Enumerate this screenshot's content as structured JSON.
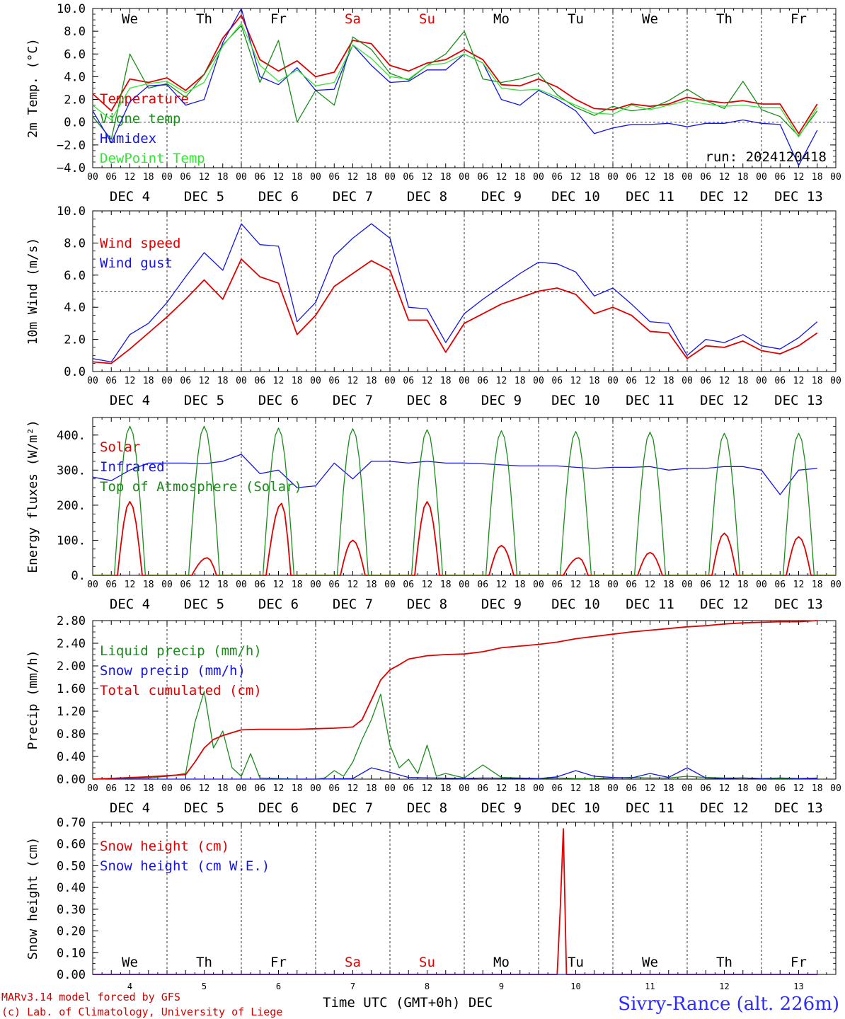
{
  "meta": {
    "run_label": "run: 2024120418",
    "model_credit": "MARv3.14 model forced by GFS",
    "lab_credit": "(c) Lab. of Climatology, University of Liege",
    "x_axis_title": "Time UTC (GMT+0h) DEC",
    "station": "Sivry-Rance (alt. 226m)"
  },
  "colors": {
    "red": "#e00000",
    "green": "#1a8c1a",
    "blue": "#1414e6",
    "lightgreen": "#33e633",
    "weekend": "#e00000",
    "station": "#2b2bff"
  },
  "days": {
    "weekday_labels": [
      "We",
      "Th",
      "Fr",
      "Sa",
      "Su",
      "Mo",
      "Tu",
      "We",
      "Th",
      "Fr"
    ],
    "weekend_flags": [
      false,
      false,
      false,
      true,
      true,
      false,
      false,
      false,
      false,
      false
    ],
    "date_labels": [
      "DEC  4",
      "DEC  5",
      "DEC  6",
      "DEC  7",
      "DEC  8",
      "DEC  9",
      "DEC 10",
      "DEC 11",
      "DEC 12",
      "DEC 13"
    ],
    "day_numbers": [
      "4",
      "5",
      "6",
      "7",
      "8",
      "9",
      "10",
      "11",
      "12",
      "13"
    ],
    "hour_labels": [
      "00",
      "06",
      "12",
      "18"
    ],
    "end_hour_label": "00"
  },
  "chart_data": [
    {
      "type": "line",
      "ylabel": "2m Temp. (°C)",
      "x_unit": "hours since DEC 4 00 UTC",
      "ylim": [
        -4,
        10
      ],
      "yticks": [
        -4,
        -2,
        0,
        2,
        4,
        6,
        8,
        10
      ],
      "ytick_labels": [
        "−4.0",
        "−2.0",
        "0.0",
        "2.0",
        "4.0",
        "6.0",
        "8.0",
        "10.0"
      ],
      "ref_line": 0,
      "series": [
        {
          "name": "Temperature",
          "color": "red",
          "x": [
            0,
            6,
            12,
            18,
            24,
            30,
            36,
            42,
            48,
            54,
            60,
            66,
            72,
            78,
            84,
            90,
            96,
            102,
            108,
            114,
            120,
            126,
            132,
            138,
            144,
            150,
            156,
            162,
            168,
            174,
            180,
            186,
            192,
            198,
            204,
            210,
            216,
            222,
            228,
            234
          ],
          "y": [
            2.5,
            1.0,
            3.8,
            3.5,
            3.9,
            2.8,
            4.2,
            7.4,
            9.4,
            5.5,
            4.5,
            5.4,
            4.0,
            4.4,
            7.2,
            6.9,
            5.0,
            4.5,
            5.2,
            5.5,
            6.4,
            5.5,
            3.3,
            3.2,
            3.8,
            3.1,
            2.0,
            1.2,
            1.1,
            1.6,
            1.4,
            1.6,
            2.2,
            1.9,
            1.7,
            1.9,
            1.6,
            1.6,
            -1.0,
            1.6
          ]
        },
        {
          "name": "Vigne temp",
          "color": "green",
          "x": [
            0,
            6,
            12,
            18,
            24,
            30,
            36,
            42,
            48,
            54,
            60,
            66,
            72,
            78,
            84,
            90,
            96,
            102,
            108,
            114,
            120,
            126,
            132,
            138,
            144,
            150,
            156,
            162,
            168,
            174,
            180,
            186,
            192,
            198,
            204,
            210,
            216,
            222,
            228,
            234
          ],
          "y": [
            0.5,
            -1.5,
            6.0,
            3.0,
            3.4,
            2.2,
            4.2,
            6.8,
            8.5,
            3.5,
            7.2,
            0.0,
            2.8,
            1.5,
            7.5,
            6.4,
            4.3,
            3.7,
            5.0,
            6.0,
            8.0,
            3.8,
            3.5,
            3.8,
            4.3,
            2.4,
            1.3,
            0.6,
            1.4,
            1.0,
            1.2,
            1.9,
            2.9,
            1.9,
            1.2,
            3.6,
            1.1,
            0.5,
            -1.2,
            1.0
          ]
        },
        {
          "name": "Humidex",
          "color": "blue",
          "x": [
            0,
            6,
            12,
            18,
            24,
            30,
            36,
            42,
            48,
            54,
            60,
            66,
            72,
            78,
            84,
            90,
            96,
            102,
            108,
            114,
            120,
            126,
            132,
            138,
            144,
            150,
            156,
            162,
            168,
            174,
            180,
            186,
            192,
            198,
            204,
            210,
            216,
            222,
            228,
            234
          ],
          "y": [
            1.0,
            -1.8,
            1.8,
            3.2,
            3.3,
            1.5,
            2.0,
            7.0,
            10.0,
            4.0,
            3.3,
            4.8,
            2.8,
            2.9,
            6.8,
            5.0,
            3.5,
            3.6,
            4.6,
            4.6,
            6.0,
            5.2,
            2.0,
            1.5,
            2.8,
            2.0,
            1.0,
            -1.0,
            -0.5,
            -0.2,
            -0.2,
            -0.1,
            -0.4,
            -0.1,
            -0.1,
            0.2,
            -0.1,
            -0.2,
            -3.8,
            -0.7
          ]
        },
        {
          "name": "DewPoint Temp",
          "color": "lightgreen",
          "x": [
            0,
            6,
            12,
            18,
            24,
            30,
            36,
            42,
            48,
            54,
            60,
            66,
            72,
            78,
            84,
            90,
            96,
            102,
            108,
            114,
            120,
            126,
            132,
            138,
            144,
            150,
            156,
            162,
            168,
            174,
            180,
            186,
            192,
            198,
            204,
            210,
            216,
            222,
            228,
            234
          ],
          "y": [
            1.5,
            0.2,
            3.0,
            3.4,
            3.6,
            2.6,
            3.5,
            6.7,
            8.7,
            5.0,
            3.6,
            4.6,
            3.2,
            3.5,
            6.8,
            5.6,
            4.0,
            3.8,
            5.0,
            5.2,
            6.0,
            5.2,
            3.0,
            2.8,
            2.9,
            2.2,
            1.5,
            0.8,
            0.7,
            1.5,
            1.1,
            1.5,
            1.9,
            1.6,
            1.4,
            1.5,
            1.3,
            1.3,
            -1.3,
            1.3
          ]
        }
      ]
    },
    {
      "type": "line",
      "ylabel": "10m Wind (m/s)",
      "x_unit": "hours since DEC 4 00 UTC",
      "ylim": [
        0,
        10
      ],
      "yticks": [
        0,
        2,
        4,
        6,
        8,
        10
      ],
      "ytick_labels": [
        "0.0",
        "2.0",
        "4.0",
        "6.0",
        "8.0",
        "10.0"
      ],
      "ref_line": 5,
      "series": [
        {
          "name": "Wind speed",
          "color": "red",
          "x": [
            0,
            6,
            12,
            18,
            24,
            30,
            36,
            42,
            48,
            54,
            60,
            66,
            72,
            78,
            84,
            90,
            96,
            102,
            108,
            114,
            120,
            126,
            132,
            138,
            144,
            150,
            156,
            162,
            168,
            174,
            180,
            186,
            192,
            198,
            204,
            210,
            216,
            222,
            228,
            234
          ],
          "y": [
            0.6,
            0.5,
            1.4,
            2.4,
            3.4,
            4.5,
            5.7,
            4.5,
            7.0,
            5.9,
            5.5,
            2.3,
            3.5,
            5.3,
            6.1,
            6.9,
            6.3,
            3.2,
            3.2,
            1.2,
            3.0,
            3.6,
            4.2,
            4.6,
            5.0,
            5.2,
            4.8,
            3.6,
            4.0,
            3.5,
            2.5,
            2.4,
            0.8,
            1.6,
            1.5,
            1.9,
            1.3,
            1.1,
            1.6,
            2.4
          ]
        },
        {
          "name": "Wind gust",
          "color": "blue",
          "x": [
            0,
            6,
            12,
            18,
            24,
            30,
            36,
            42,
            48,
            54,
            60,
            66,
            72,
            78,
            84,
            90,
            96,
            102,
            108,
            114,
            120,
            126,
            132,
            138,
            144,
            150,
            156,
            162,
            168,
            174,
            180,
            186,
            192,
            198,
            204,
            210,
            216,
            222,
            228,
            234
          ],
          "y": [
            0.8,
            0.6,
            2.3,
            3.0,
            4.3,
            5.9,
            7.4,
            6.3,
            9.2,
            7.9,
            7.8,
            3.1,
            4.3,
            7.2,
            8.3,
            9.2,
            8.3,
            4.0,
            3.9,
            1.8,
            3.6,
            4.5,
            5.3,
            6.1,
            6.8,
            6.7,
            6.2,
            4.7,
            5.2,
            4.2,
            3.1,
            3.0,
            1.0,
            2.0,
            1.8,
            2.3,
            1.6,
            1.4,
            2.1,
            3.1
          ]
        }
      ]
    },
    {
      "type": "line",
      "ylabel": "Energy fluxes (W/m²)",
      "x_unit": "hours since DEC 4 00 UTC",
      "ylim": [
        0,
        450
      ],
      "yticks": [
        0,
        100,
        200,
        300,
        400
      ],
      "ytick_labels": [
        "0.",
        "100.",
        "200.",
        "300.",
        "400."
      ],
      "series": [
        {
          "name": "Solar",
          "color": "red",
          "daily_peak_hours_after_midnight": [
            12,
            13,
            13,
            12,
            12,
            12,
            13,
            12,
            12,
            12
          ],
          "daily_peak_values": [
            210,
            50,
            205,
            100,
            210,
            85,
            50,
            65,
            120,
            110
          ]
        },
        {
          "name": "Infrared",
          "color": "blue",
          "x": [
            0,
            6,
            12,
            18,
            24,
            30,
            36,
            42,
            48,
            54,
            60,
            66,
            72,
            78,
            84,
            90,
            96,
            102,
            108,
            114,
            120,
            126,
            132,
            138,
            144,
            150,
            156,
            162,
            168,
            174,
            180,
            186,
            192,
            198,
            204,
            210,
            216,
            222,
            228,
            234
          ],
          "y": [
            280,
            270,
            300,
            320,
            320,
            320,
            318,
            325,
            345,
            290,
            300,
            250,
            255,
            320,
            275,
            325,
            325,
            320,
            325,
            320,
            320,
            318,
            315,
            312,
            312,
            312,
            308,
            305,
            308,
            308,
            310,
            300,
            305,
            305,
            310,
            310,
            300,
            230,
            300,
            305
          ]
        },
        {
          "name": "Top of Atmosphere (Solar)",
          "color": "green",
          "daily_peak_hours_after_midnight": [
            12,
            12,
            12,
            12,
            12,
            12,
            12,
            12,
            12,
            12
          ],
          "daily_peak_values": [
            425,
            425,
            420,
            418,
            415,
            412,
            410,
            408,
            405,
            405
          ]
        }
      ]
    },
    {
      "type": "line",
      "ylabel": "Precip (mm/h)",
      "x_unit": "hours since DEC 4 00 UTC",
      "ylim": [
        0,
        2.8
      ],
      "yticks": [
        0,
        0.4,
        0.8,
        1.2,
        1.6,
        2.0,
        2.4,
        2.8
      ],
      "ytick_labels": [
        "0.00",
        "0.40",
        "0.80",
        "1.20",
        "1.60",
        "2.00",
        "2.40",
        "2.80"
      ],
      "series": [
        {
          "name": "Liquid precip (mm/h)",
          "color": "green",
          "x": [
            0,
            18,
            24,
            30,
            33,
            36,
            39,
            42,
            45,
            48,
            51,
            54,
            66,
            72,
            75,
            78,
            81,
            84,
            87,
            90,
            93,
            96,
            99,
            102,
            105,
            108,
            111,
            114,
            120,
            126,
            132,
            138,
            144,
            150,
            156,
            162,
            168,
            174,
            180,
            186,
            192,
            198,
            204,
            210,
            216,
            222,
            228,
            234
          ],
          "y": [
            0,
            0.02,
            0.05,
            0.1,
            1.0,
            1.55,
            0.55,
            0.85,
            0.2,
            0.05,
            0.45,
            0.02,
            0,
            0,
            0.02,
            0.15,
            0.05,
            0.3,
            0.7,
            1.05,
            1.5,
            0.6,
            0.2,
            0.35,
            0.1,
            0.6,
            0.05,
            0.1,
            0.02,
            0.25,
            0.03,
            0.02,
            0.01,
            0.02,
            0.01,
            0.01,
            0.02,
            0.03,
            0.02,
            0.02,
            0.05,
            0.03,
            0.02,
            0.02,
            0.01,
            0.01,
            0.01,
            0.02
          ]
        },
        {
          "name": "Snow precip (mm/h)",
          "color": "blue",
          "x": [
            0,
            24,
            72,
            84,
            90,
            96,
            102,
            120,
            126,
            144,
            150,
            156,
            162,
            168,
            174,
            180,
            186,
            192,
            198,
            204,
            210,
            216,
            222,
            228,
            234
          ],
          "y": [
            0,
            0,
            0,
            0.01,
            0.2,
            0.12,
            0.03,
            0.01,
            0.02,
            0.01,
            0.04,
            0.15,
            0.05,
            0.03,
            0.02,
            0.1,
            0.03,
            0.2,
            0.02,
            0.01,
            0.02,
            0.01,
            0.02,
            0.01,
            0.01
          ]
        },
        {
          "name": "Total cumulated (cm)",
          "color": "red",
          "x": [
            0,
            18,
            24,
            30,
            33,
            36,
            39,
            42,
            45,
            48,
            54,
            60,
            66,
            72,
            78,
            84,
            87,
            90,
            93,
            96,
            99,
            102,
            108,
            114,
            120,
            126,
            132,
            138,
            144,
            150,
            156,
            162,
            168,
            174,
            180,
            186,
            192,
            198,
            204,
            210,
            216,
            222,
            228,
            234
          ],
          "y": [
            0,
            0.04,
            0.06,
            0.08,
            0.3,
            0.55,
            0.7,
            0.77,
            0.82,
            0.87,
            0.88,
            0.88,
            0.88,
            0.89,
            0.9,
            0.92,
            1.05,
            1.4,
            1.75,
            1.93,
            2.02,
            2.12,
            2.18,
            2.2,
            2.21,
            2.25,
            2.32,
            2.35,
            2.38,
            2.42,
            2.48,
            2.52,
            2.56,
            2.6,
            2.63,
            2.66,
            2.69,
            2.71,
            2.74,
            2.76,
            2.77,
            2.78,
            2.78,
            2.8
          ]
        }
      ]
    },
    {
      "type": "line",
      "ylabel": "Snow height (cm)",
      "x_unit": "hours since DEC 4 00 UTC",
      "ylim": [
        0,
        0.7
      ],
      "yticks": [
        0,
        0.1,
        0.2,
        0.3,
        0.4,
        0.5,
        0.6,
        0.7
      ],
      "ytick_labels": [
        "0.00",
        "0.10",
        "0.20",
        "0.30",
        "0.40",
        "0.50",
        "0.60",
        "0.70"
      ],
      "series": [
        {
          "name": "Snow height (cm)",
          "color": "red",
          "x": [
            0,
            150,
            151,
            152,
            153,
            234
          ],
          "y": [
            0,
            0,
            0.3,
            0.67,
            0,
            0
          ]
        },
        {
          "name": "Snow height (cm W.E.)",
          "color": "blue",
          "x": [
            0,
            234
          ],
          "y": [
            0,
            0
          ]
        }
      ]
    }
  ]
}
